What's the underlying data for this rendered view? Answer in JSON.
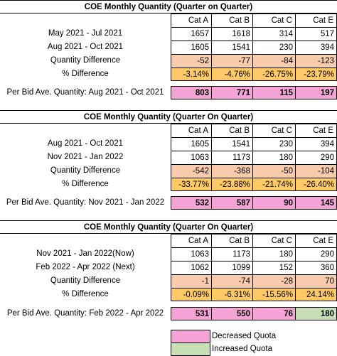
{
  "colors": {
    "peach": "#f8cbad",
    "orange": "#ffc966",
    "pink": "#f4a3d7",
    "green": "#c6dfb4"
  },
  "headers": [
    "Cat A",
    "Cat B",
    "Cat C",
    "Cat E"
  ],
  "section1": {
    "title": "COE Monthly Quantity (Quarter on Quarter)",
    "rows": [
      {
        "label": "May 2021 -  Jul 2021",
        "values": [
          "1657",
          "1618",
          "314",
          "517"
        ]
      },
      {
        "label": "Aug 2021 -  Oct 2021",
        "values": [
          "1605",
          "1541",
          "230",
          "394"
        ]
      },
      {
        "label": "Quantity Difference",
        "values": [
          "-52",
          "-77",
          "-84",
          "-123"
        ]
      },
      {
        "label": "% Difference",
        "values": [
          "-3.14%",
          "-4.76%",
          "-26.75%",
          "-23.79%"
        ]
      }
    ],
    "bid_label": "Per Bid Ave. Quantity: Aug 2021 -  Oct 2021",
    "bid_values": [
      "803",
      "771",
      "115",
      "197"
    ]
  },
  "section2": {
    "title": "COE Monthly Quantity (Quarter On Quarter)",
    "rows": [
      {
        "label": "Aug  2021 -  Oct 2021",
        "values": [
          "1605",
          "1541",
          "230",
          "394"
        ]
      },
      {
        "label": "Nov 2021 -  Jan 2022",
        "values": [
          "1063",
          "1173",
          "180",
          "290"
        ]
      },
      {
        "label": "Quantity Difference",
        "values": [
          "-542",
          "-368",
          "-50",
          "-104"
        ]
      },
      {
        "label": "% Difference",
        "values": [
          "-33.77%",
          "-23.88%",
          "-21.74%",
          "-26.40%"
        ]
      }
    ],
    "bid_label": "Per Bid Ave. Quantity: Nov 2021 -  Jan 2022",
    "bid_values": [
      "532",
      "587",
      "90",
      "145"
    ]
  },
  "section3": {
    "title": "COE Monthly Quantity (Quarter On Quarter)",
    "rows": [
      {
        "label": "Nov 2021 -  Jan 2022(Now)",
        "values": [
          "1063",
          "1173",
          "180",
          "290"
        ]
      },
      {
        "label": "Feb 2022 -  Apr 2022 (Next)",
        "values": [
          "1062",
          "1099",
          "152",
          "360"
        ]
      },
      {
        "label": "Quantity Difference",
        "values": [
          "-1",
          "-74",
          "-28",
          "70"
        ]
      },
      {
        "label": "% Difference",
        "values": [
          "-0.09%",
          "-6.31%",
          "-15.56%",
          "24.14%"
        ]
      }
    ],
    "bid_label": "Per Bid Ave. Quantity: Feb 2022 -  Apr 2022",
    "bid_values": [
      "531",
      "550",
      "76",
      "180"
    ]
  },
  "legend": {
    "decreased": "Decreased Quota",
    "increased": "Increased Quota"
  }
}
